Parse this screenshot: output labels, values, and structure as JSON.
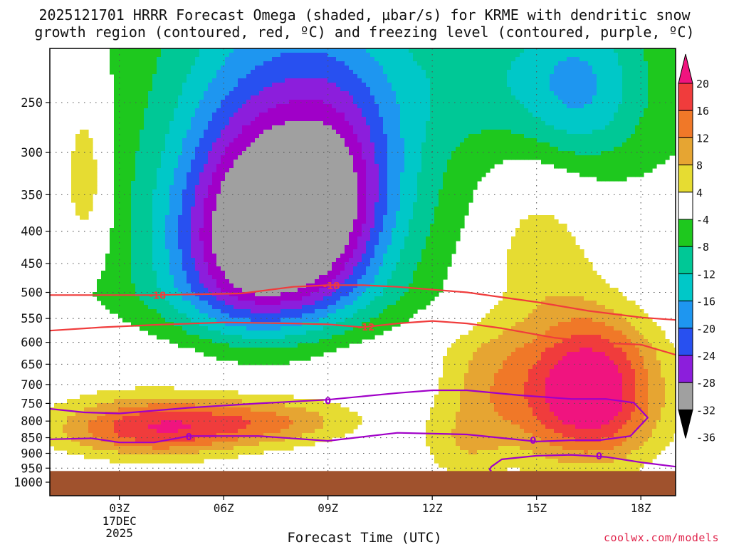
{
  "chart_data": {
    "type": "heatmap",
    "title_line1": "2025121701 HRRR Forecast Omega (shaded, µbar/s) for KRME with dendritic snow",
    "title_line2": "growth region (contoured, red, ºC) and freezing level (contoured, purple, ºC)",
    "xlabel": "Forecast Time (UTC)",
    "ylabel": "",
    "x_range_hours": [
      1,
      19
    ],
    "y_range_hPa": [
      1000,
      200
    ],
    "y_scale": "log-pressure",
    "grid": true,
    "x_ticks": [
      {
        "hour": 3,
        "label": "03Z",
        "sublabels": [
          "17DEC",
          "2025"
        ]
      },
      {
        "hour": 6,
        "label": "06Z",
        "sublabels": []
      },
      {
        "hour": 9,
        "label": "09Z",
        "sublabels": []
      },
      {
        "hour": 12,
        "label": "12Z",
        "sublabels": []
      },
      {
        "hour": 15,
        "label": "15Z",
        "sublabels": []
      },
      {
        "hour": 18,
        "label": "18Z",
        "sublabels": []
      }
    ],
    "y_ticks": [
      250,
      300,
      350,
      400,
      450,
      500,
      550,
      600,
      650,
      700,
      750,
      800,
      850,
      900,
      950,
      1000
    ],
    "colorbar": {
      "labels": [
        "20",
        "16",
        "12",
        "8",
        "4",
        "-4",
        "-8",
        "-12",
        "-16",
        "-20",
        "-24",
        "-28",
        "-32",
        "-36"
      ],
      "bins": [
        {
          "from": 20,
          "to": 99,
          "color": "#f0147f"
        },
        {
          "from": 16,
          "to": 20,
          "color": "#f03c3c"
        },
        {
          "from": 12,
          "to": 16,
          "color": "#f07828"
        },
        {
          "from": 8,
          "to": 12,
          "color": "#e6a532"
        },
        {
          "from": 4,
          "to": 8,
          "color": "#e6dc32"
        },
        {
          "from": -4,
          "to": 4,
          "color": "#ffffff"
        },
        {
          "from": -8,
          "to": -4,
          "color": "#1ec81e"
        },
        {
          "from": -12,
          "to": -8,
          "color": "#00c896"
        },
        {
          "from": -16,
          "to": -12,
          "color": "#00c8c8"
        },
        {
          "from": -20,
          "to": -16,
          "color": "#1e96f0"
        },
        {
          "from": -24,
          "to": -20,
          "color": "#2850f0"
        },
        {
          "from": -28,
          "to": -24,
          "color": "#8c1edc"
        },
        {
          "from": -32,
          "to": -28,
          "color": "#a000c8"
        },
        {
          "from": -99,
          "to": -32,
          "color": "#a0a0a0"
        }
      ]
    },
    "omega_regions": [
      {
        "name": "ascent-core-0306",
        "value": -36,
        "hour": 7.0,
        "hPa": 405,
        "dh": 0.8,
        "dp": 55
      },
      {
        "name": "upper-ascent-1517",
        "value": -16,
        "hour": 16.4,
        "hPa": 240,
        "dh": 1.5,
        "dp": 55
      },
      {
        "name": "subsidence-0203",
        "value": 10,
        "hour": 2.0,
        "hPa": 335,
        "dh": 0.3,
        "dp": 60
      },
      {
        "name": "lower-subsidence-0508",
        "value": 18,
        "hour": 5.5,
        "hPa": 820,
        "dh": 2.5,
        "dp": 70
      },
      {
        "name": "subsidence-1518",
        "value": 24,
        "hour": 16.5,
        "hPa": 740,
        "dh": 2.6,
        "dp": 230
      }
    ],
    "series": [
      {
        "name": "-18",
        "color": "#f03c3c",
        "points": [
          [
            1,
            505
          ],
          [
            4,
            505
          ],
          [
            6.5,
            502
          ],
          [
            8,
            490
          ],
          [
            9,
            487
          ],
          [
            10,
            487
          ],
          [
            11,
            490
          ],
          [
            13,
            500
          ],
          [
            15,
            518
          ],
          [
            16.5,
            535
          ],
          [
            18,
            548
          ],
          [
            19,
            553
          ]
        ]
      },
      {
        "name": "-12",
        "color": "#f03c3c",
        "points": [
          [
            1,
            575
          ],
          [
            2.5,
            568
          ],
          [
            4,
            563
          ],
          [
            6,
            558
          ],
          [
            8,
            560
          ],
          [
            9,
            562
          ],
          [
            10,
            568
          ],
          [
            11,
            560
          ],
          [
            12,
            555
          ],
          [
            13,
            560
          ],
          [
            14,
            570
          ],
          [
            15.5,
            590
          ],
          [
            17,
            602
          ],
          [
            18,
            605
          ],
          [
            19,
            628
          ]
        ]
      },
      {
        "name": "0 (upper)",
        "color": "#a000c8",
        "points": [
          [
            1,
            765
          ],
          [
            2,
            775
          ],
          [
            3,
            778
          ],
          [
            5,
            762
          ],
          [
            7,
            750
          ],
          [
            9,
            740
          ],
          [
            11,
            722
          ],
          [
            12,
            715
          ],
          [
            13,
            715
          ],
          [
            14.5,
            728
          ],
          [
            16,
            738
          ],
          [
            17,
            738
          ],
          [
            17.8,
            748
          ],
          [
            18.2,
            790
          ],
          [
            17.7,
            845
          ],
          [
            16.8,
            858
          ],
          [
            16,
            858
          ],
          [
            15,
            862
          ],
          [
            13,
            840
          ],
          [
            11,
            835
          ],
          [
            9,
            860
          ],
          [
            7,
            845
          ],
          [
            5,
            845
          ],
          [
            4,
            865
          ],
          [
            3,
            865
          ],
          [
            2.2,
            852
          ],
          [
            1,
            855
          ]
        ]
      },
      {
        "name": "0 (lower)",
        "color": "#a000c8",
        "points": [
          [
            13.7,
            960
          ],
          [
            13.65,
            955
          ],
          [
            13.7,
            945
          ],
          [
            14,
            920
          ],
          [
            15,
            908
          ],
          [
            16,
            905
          ],
          [
            17,
            912
          ],
          [
            18,
            930
          ],
          [
            19,
            945
          ]
        ]
      }
    ],
    "contour_labels": [
      {
        "text": "-18",
        "hour": 4.1,
        "hPa": 505,
        "color": "#f03c3c"
      },
      {
        "text": "-18",
        "hour": 9.1,
        "hPa": 488,
        "color": "#f03c3c"
      },
      {
        "text": "-12",
        "hour": 10.1,
        "hPa": 567,
        "color": "#f03c3c"
      },
      {
        "text": "-12",
        "hour": 16.6,
        "hPa": 598,
        "color": "#f03c3c"
      },
      {
        "text": "0",
        "hour": 9.0,
        "hPa": 742,
        "color": "#a000c8"
      },
      {
        "text": "0",
        "hour": 16.8,
        "hPa": 908,
        "color": "#a000c8"
      },
      {
        "text": "0",
        "hour": 5.0,
        "hPa": 847,
        "color": "#a000c8"
      },
      {
        "text": "0",
        "hour": 14.9,
        "hPa": 858,
        "color": "#a000c8"
      }
    ],
    "ground_top_hPa": 960,
    "ground_color": "#a0522d",
    "colors": {
      "grid": "#555555"
    }
  },
  "brand": "coolwx.com/models"
}
